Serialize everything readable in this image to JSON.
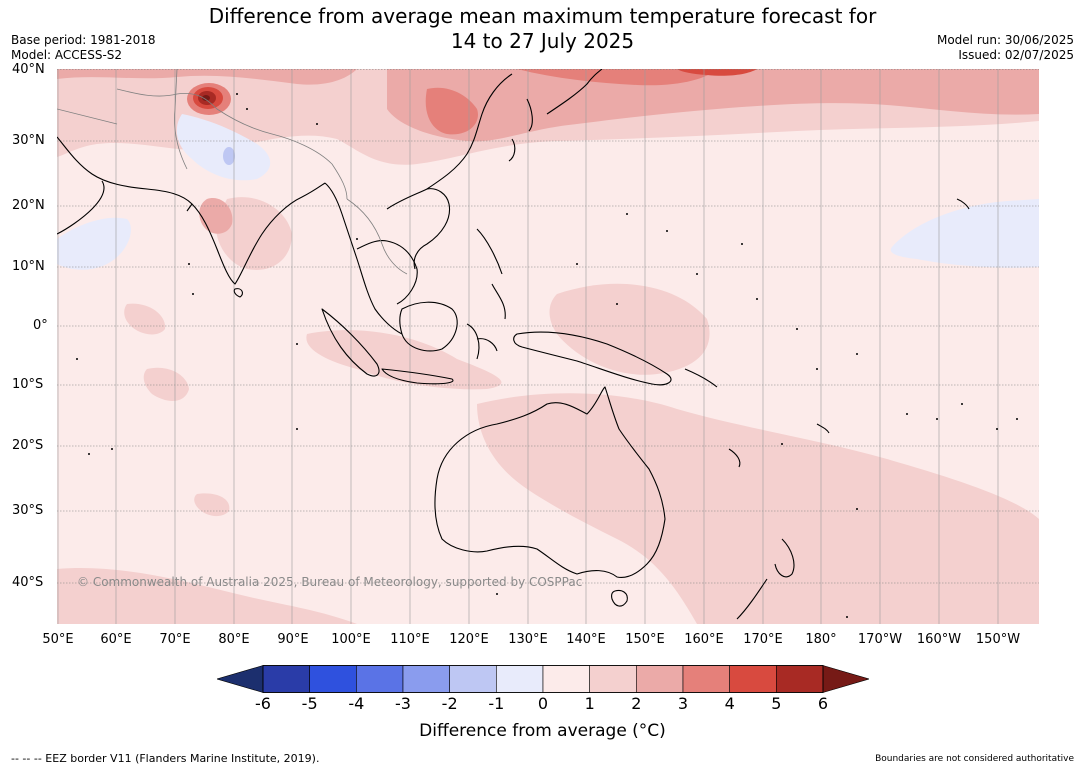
{
  "header": {
    "title_line1": "Difference from average mean maximum temperature forecast for",
    "title_line2": "14 to 27 July 2025",
    "base_period": "Base period: 1981-2018",
    "model": "Model: ACCESS-S2",
    "model_run": "Model run: 30/06/2025",
    "issued": "Issued: 02/07/2025"
  },
  "map": {
    "lat_labels": [
      "40°N",
      "30°N",
      "20°N",
      "10°N",
      "0°",
      "10°S",
      "20°S",
      "30°S",
      "40°S"
    ],
    "lon_labels": [
      "50°E",
      "60°E",
      "70°E",
      "80°E",
      "90°E",
      "100°E",
      "110°E",
      "120°E",
      "130°E",
      "140°E",
      "150°E",
      "160°E",
      "170°E",
      "180°",
      "170°W",
      "160°W",
      "150°W"
    ],
    "copyright": "© Commonwealth of Australia 2025, Bureau of Meteorology, supported by COSPPac"
  },
  "legend": {
    "ticks": [
      "-6",
      "-5",
      "-4",
      "-3",
      "-2",
      "-1",
      "0",
      "1",
      "2",
      "3",
      "4",
      "5",
      "6"
    ],
    "colors": [
      "#1c2f6e",
      "#2a3ca8",
      "#2f51de",
      "#5a73e6",
      "#8a9cee",
      "#bec7f3",
      "#e8ebfb",
      "#fcebea",
      "#f4d0cf",
      "#ebaaa8",
      "#e5807a",
      "#d84a3f",
      "#a82a24",
      "#761a16"
    ],
    "label": "Difference from average (°C)"
  },
  "footer": {
    "eez_note": "--  --  -- EEZ border V11 (Flanders Marine Institute, 2019).",
    "boundaries_note": "Boundaries are not considered authoritative"
  }
}
